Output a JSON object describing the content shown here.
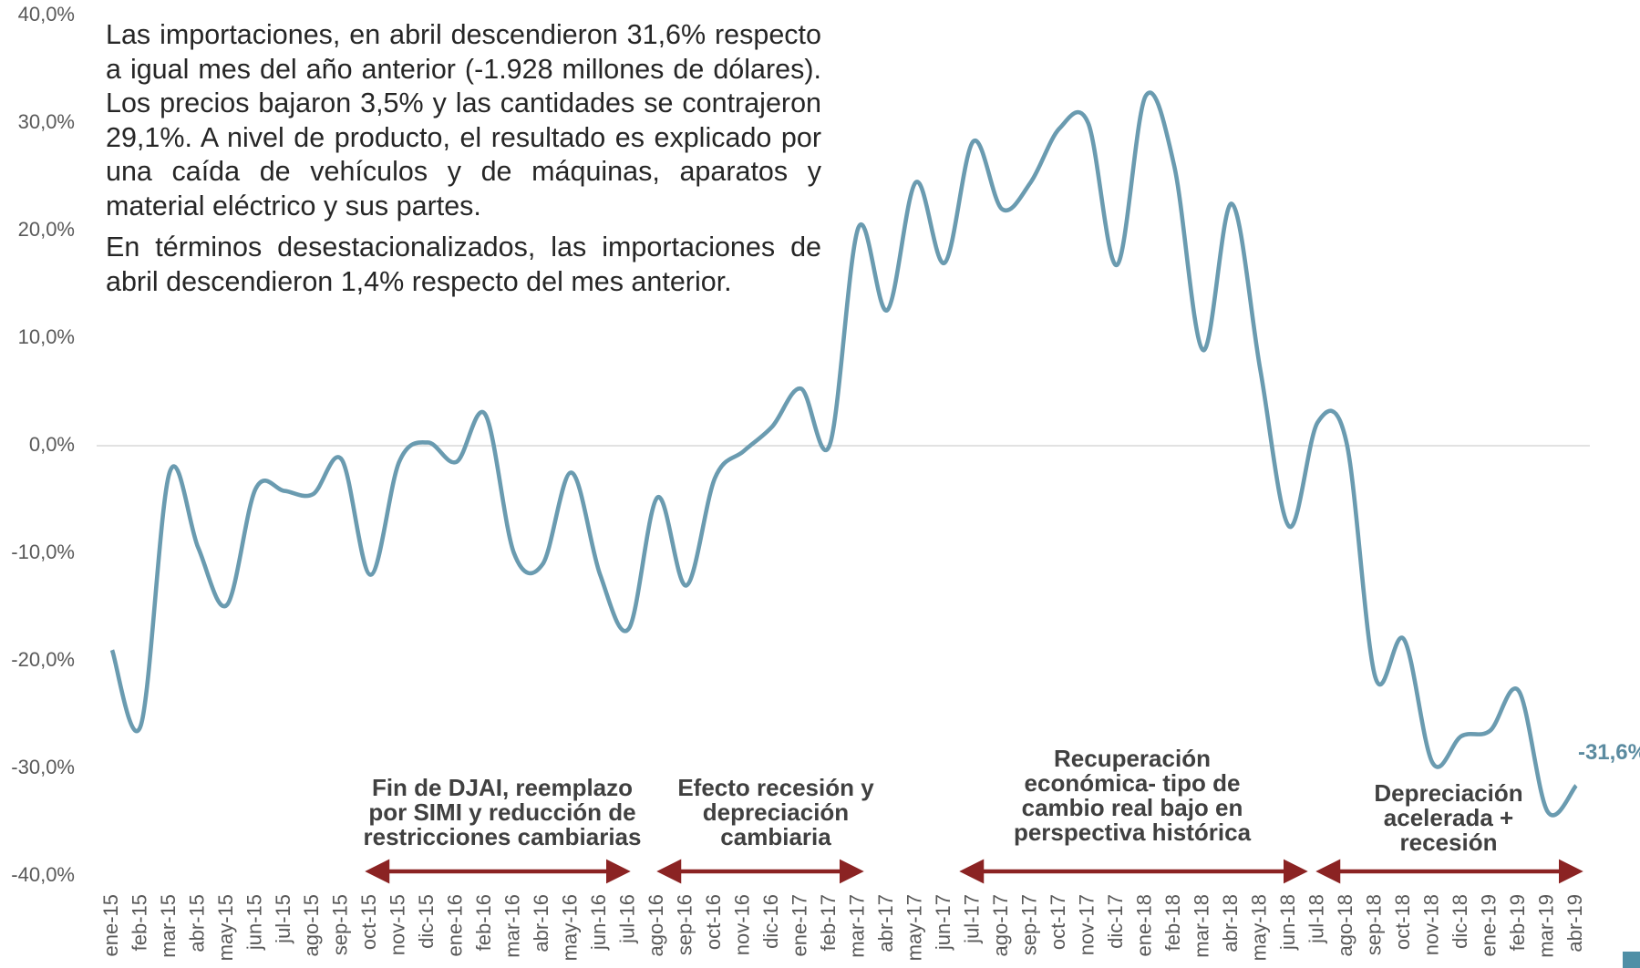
{
  "chart_data": {
    "type": "line",
    "paragraphs": [
      "Las importaciones, en abril descendieron 31,6% respecto a igual mes del año anterior (-1.928 millones de dólares). Los precios bajaron 3,5% y las cantidades se contrajeron 29,1%. A nivel de producto, el resultado es explicado por una caída de vehículos y de máquinas, aparatos y material eléctrico y sus partes.",
      "En términos desestacionalizados, las importaciones de abril descendieron 1,4% respecto del mes anterior."
    ],
    "categories": [
      "ene-15",
      "feb-15",
      "mar-15",
      "abr-15",
      "may-15",
      "jun-15",
      "jul-15",
      "ago-15",
      "sep-15",
      "oct-15",
      "nov-15",
      "dic-15",
      "ene-16",
      "feb-16",
      "mar-16",
      "abr-16",
      "may-16",
      "jun-16",
      "jul-16",
      "ago-16",
      "sep-16",
      "oct-16",
      "nov-16",
      "dic-16",
      "ene-17",
      "feb-17",
      "mar-17",
      "abr-17",
      "may-17",
      "jun-17",
      "jul-17",
      "ago-17",
      "sep-17",
      "oct-17",
      "nov-17",
      "dic-17",
      "ene-18",
      "feb-18",
      "mar-18",
      "abr-18",
      "may-18",
      "jun-18",
      "jul-18",
      "ago-18",
      "sep-18",
      "oct-18",
      "nov-18",
      "dic-18",
      "ene-19",
      "feb-19",
      "mar-19",
      "abr-19"
    ],
    "series": [
      {
        "name": "Importaciones",
        "color": "#6a9bb0",
        "values": [
          -19,
          -26,
          -2.5,
          -9.5,
          -14.8,
          -4,
          -4.2,
          -4.5,
          -1.3,
          -12,
          -1.5,
          0.3,
          -1.5,
          2.9,
          -10,
          -11,
          -2.5,
          -12,
          -17,
          -4.8,
          -13,
          -3,
          -0.5,
          1.8,
          5.3,
          0.1,
          20.3,
          12.6,
          24.5,
          17,
          28.3,
          22,
          24.5,
          29.5,
          30,
          16.8,
          32.5,
          26,
          8.9,
          22.5,
          7,
          -7.5,
          2.2,
          0.3,
          -21.5,
          -18,
          -29.5,
          -27,
          -26.5,
          -22.8,
          -34,
          -31.6
        ],
        "value_labels": {
          "51": "-31,6%"
        }
      }
    ],
    "ylim": [
      -40,
      40
    ],
    "yticks": [
      {
        "value": -40,
        "label": "-40,0%"
      },
      {
        "value": -30,
        "label": "-30,0%"
      },
      {
        "value": -20,
        "label": "-20,0%"
      },
      {
        "value": -10,
        "label": "-10,0%"
      },
      {
        "value": 0,
        "label": "0,0%"
      },
      {
        "value": 10,
        "label": "10,0%"
      },
      {
        "value": 20,
        "label": "20,0%"
      },
      {
        "value": 30,
        "label": "30,0%"
      },
      {
        "value": 40,
        "label": "40,0%"
      }
    ],
    "annotations": [
      {
        "lines": [
          "Fin de DJAI, reemplazo",
          "por SIMI y reducción de",
          "restricciones cambiarias"
        ]
      },
      {
        "lines": [
          "Efecto recesión y",
          "depreciación",
          "cambiaria"
        ]
      },
      {
        "lines": [
          "Recuperación",
          "económica- tipo de",
          "cambio real bajo en",
          "perspectiva histórica"
        ]
      },
      {
        "lines": [
          "Depreciación",
          "acelerada +",
          "recesión"
        ]
      }
    ]
  }
}
